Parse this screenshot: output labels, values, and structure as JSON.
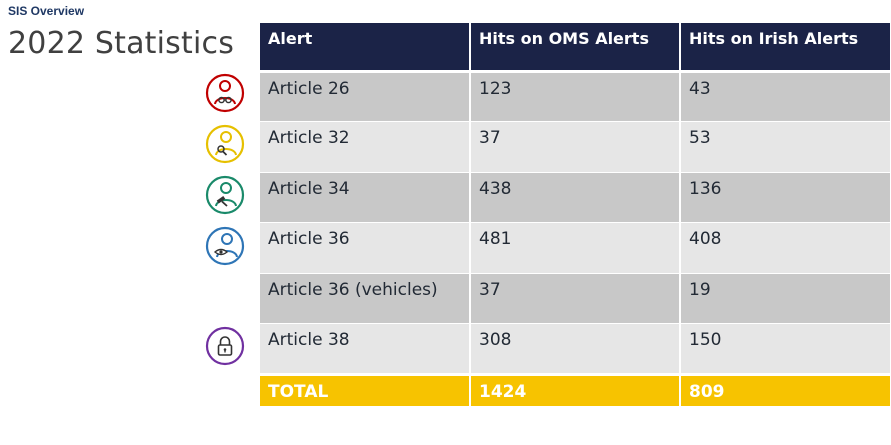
{
  "header": {
    "overline": "SIS Overview",
    "title": "2022 Statistics"
  },
  "table": {
    "headers": [
      "Alert",
      "Hits on OMS Alerts",
      "Hits on Irish Alerts"
    ],
    "rows": [
      {
        "alert": "Article 26",
        "oms": "123",
        "irish": "43",
        "icon": "person-handcuffs-icon",
        "icon_color": "#c00000"
      },
      {
        "alert": "Article 32",
        "oms": "37",
        "irish": "53",
        "icon": "person-magnifier-icon",
        "icon_color": "#e6c000"
      },
      {
        "alert": "Article 34",
        "oms": "438",
        "irish": "136",
        "icon": "person-gavel-icon",
        "icon_color": "#1a8a6a"
      },
      {
        "alert": "Article 36",
        "oms": "481",
        "irish": "408",
        "icon": "person-eye-icon",
        "icon_color": "#2e75b6"
      },
      {
        "alert": "Article 36 (vehicles)",
        "oms": "37",
        "irish": "19",
        "icon": "",
        "icon_color": ""
      },
      {
        "alert": "Article 38",
        "oms": "308",
        "irish": "150",
        "icon": "padlock-icon",
        "icon_color": "#7030a0"
      }
    ],
    "total": {
      "label": "TOTAL",
      "oms": "1424",
      "irish": "809"
    }
  },
  "colors": {
    "header_bg": "#1b2347",
    "row_dark": "#c8c8c8",
    "row_light": "#e6e6e6",
    "total_bg": "#f7c300"
  }
}
